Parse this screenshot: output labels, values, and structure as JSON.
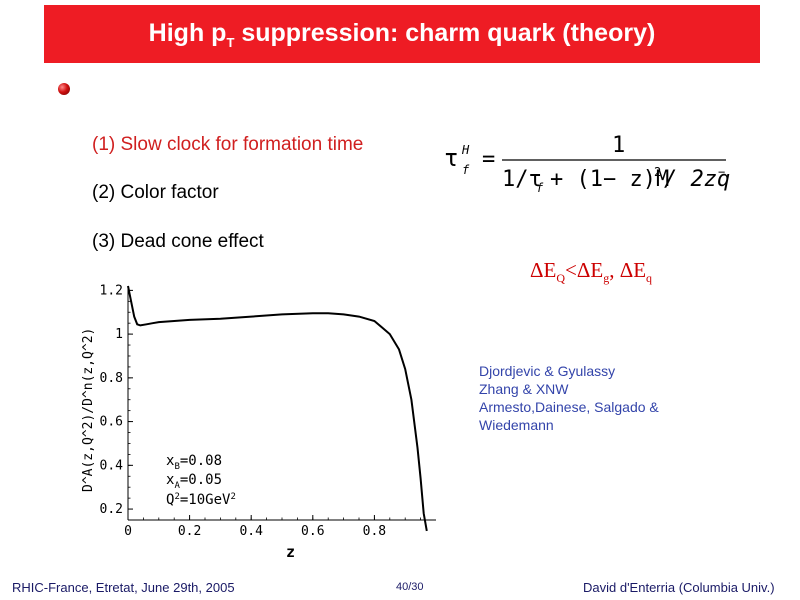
{
  "slide": {
    "title_main": "High p",
    "title_sub": "T",
    "title_rest": " suppression: charm quark (theory)"
  },
  "items": [
    "(1) Slow clock for formation time",
    "(2) Color factor",
    "(3) Dead cone effect"
  ],
  "formula": {
    "lhs": "τ",
    "lhs_sup": "H",
    "lhs_sub": "f",
    "equals": "=",
    "numerator": "1",
    "denom_a": "1/τ",
    "denom_a_sub": "f",
    "denom_b": "+ (1− z)M",
    "denom_b_sup": "2",
    "denom_c": "/ 2zq",
    "denom_c_sup": "−"
  },
  "eloss": {
    "d1": "ΔE",
    "s1": "Q",
    "lt": "<ΔE",
    "s2": "g",
    "comma": ", ΔE",
    "s3": "q"
  },
  "references": [
    "Djordjevic & Gyulassy",
    "Zhang & XNW",
    "Armesto,Dainese, Salgado &",
    "Wiedemann"
  ],
  "chart_data": {
    "type": "line",
    "title": "",
    "xlabel": "z",
    "ylabel": "D^A(z,Q^2)/D^n(z,Q^2)",
    "xlim": [
      0,
      1.0
    ],
    "ylim": [
      0.15,
      1.22
    ],
    "x_ticks": [
      "0",
      "0.2",
      "0.4",
      "0.6",
      "0.8"
    ],
    "x_tick_values": [
      0,
      0.2,
      0.4,
      0.6,
      0.8
    ],
    "y_ticks": [
      "0.2",
      "0.4",
      "0.6",
      "0.8",
      "1",
      "1.2"
    ],
    "y_tick_values": [
      0.2,
      0.4,
      0.6,
      0.8,
      1.0,
      1.2
    ],
    "annotations": [
      "x_B=0.08",
      "x_A=0.05",
      "Q^2=10GeV^2"
    ],
    "series": [
      {
        "x": [
          0.0,
          0.01,
          0.02,
          0.03,
          0.04,
          0.06,
          0.08,
          0.1,
          0.15,
          0.2,
          0.3,
          0.4,
          0.5,
          0.6,
          0.65,
          0.7,
          0.75,
          0.8,
          0.85,
          0.88,
          0.9,
          0.92,
          0.94,
          0.95,
          0.96,
          0.97
        ],
        "y": [
          1.22,
          1.15,
          1.08,
          1.045,
          1.04,
          1.045,
          1.05,
          1.055,
          1.06,
          1.065,
          1.07,
          1.08,
          1.09,
          1.095,
          1.095,
          1.09,
          1.08,
          1.06,
          1.0,
          0.93,
          0.84,
          0.7,
          0.48,
          0.34,
          0.18,
          0.1
        ]
      }
    ]
  },
  "plot_labels": {
    "x_axis": "z",
    "y_axis_text": "D^A(z,Q^2)/D^n(z,Q^2)",
    "ann1_a": "x",
    "ann1_sub": "B",
    "ann1_b": "=0.08",
    "ann2_a": "x",
    "ann2_sub": "A",
    "ann2_b": "=0.05",
    "ann3_a": "Q",
    "ann3_sup": "2",
    "ann3_b": "=10GeV",
    "ann3_sup2": "2"
  },
  "footer": {
    "left": "RHIC-France, Etretat, June 29th, 2005",
    "page": "40/30",
    "right": "David d'Enterria (Columbia Univ.)"
  },
  "colors": {
    "title_bar": "#ee1c24",
    "item_highlight": "#d01f1f",
    "eloss": "#cc0000",
    "refs": "#3344aa",
    "footer": "#1a1a66"
  }
}
